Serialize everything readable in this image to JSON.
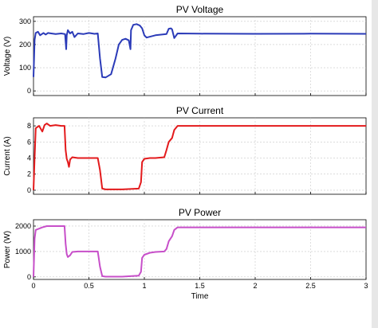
{
  "chart_data": [
    {
      "type": "line",
      "title": "PV Voltage",
      "xlabel": "",
      "ylabel": "Voltage (V)",
      "xlim": [
        0,
        3
      ],
      "ylim": [
        -20,
        320
      ],
      "xticks": [
        "",
        "",
        "",
        "",
        "",
        "",
        ""
      ],
      "yticks": [
        "0",
        "100",
        "200",
        "300"
      ],
      "grid": true,
      "series": [
        {
          "color": "#2b3bb8",
          "x": [
            0,
            0.01,
            0.02,
            0.04,
            0.06,
            0.09,
            0.11,
            0.13,
            0.16,
            0.2,
            0.25,
            0.285,
            0.295,
            0.3,
            0.31,
            0.33,
            0.35,
            0.37,
            0.4,
            0.45,
            0.5,
            0.55,
            0.58,
            0.6,
            0.62,
            0.65,
            0.7,
            0.74,
            0.77,
            0.8,
            0.83,
            0.86,
            0.875,
            0.88,
            0.9,
            0.93,
            0.96,
            0.98,
            1.0,
            1.02,
            1.1,
            1.2,
            1.22,
            1.24,
            1.25,
            1.27,
            1.3,
            1.5,
            2.0,
            2.5,
            3.0
          ],
          "y": [
            60,
            220,
            250,
            255,
            240,
            250,
            243,
            250,
            248,
            245,
            248,
            245,
            180,
            240,
            262,
            248,
            255,
            232,
            248,
            245,
            250,
            246,
            248,
            140,
            60,
            58,
            72,
            140,
            200,
            220,
            225,
            218,
            180,
            262,
            285,
            288,
            282,
            270,
            240,
            230,
            240,
            245,
            268,
            270,
            265,
            228,
            248,
            247,
            246,
            247,
            246
          ]
        }
      ]
    },
    {
      "type": "line",
      "title": "PV Current",
      "xlabel": "",
      "ylabel": "Current (A)",
      "xlim": [
        0,
        3
      ],
      "ylim": [
        -0.5,
        9
      ],
      "xticks": [
        "",
        "",
        "",
        "",
        "",
        "",
        ""
      ],
      "yticks": [
        "0",
        "2",
        "4",
        "6",
        "8"
      ],
      "grid": true,
      "series": [
        {
          "color": "#e31a1c",
          "x": [
            0,
            0.01,
            0.02,
            0.05,
            0.08,
            0.1,
            0.12,
            0.15,
            0.2,
            0.25,
            0.28,
            0.29,
            0.3,
            0.31,
            0.32,
            0.33,
            0.35,
            0.4,
            0.5,
            0.58,
            0.6,
            0.62,
            0.65,
            0.8,
            0.95,
            0.97,
            0.98,
            1.0,
            1.05,
            1.1,
            1.18,
            1.2,
            1.22,
            1.25,
            1.27,
            1.3,
            1.5,
            2.0,
            2.5,
            3.0
          ],
          "y": [
            0,
            4,
            7.7,
            8.0,
            7.3,
            8.1,
            8.3,
            8.0,
            8.1,
            8.0,
            8.0,
            5.0,
            3.9,
            3.5,
            2.9,
            3.8,
            4.1,
            4.0,
            4.0,
            4.0,
            2.5,
            0.2,
            0.1,
            0.1,
            0.2,
            1.0,
            3.5,
            3.9,
            4.0,
            4.0,
            4.1,
            5.0,
            6.0,
            6.5,
            7.5,
            8.0,
            8.0,
            8.0,
            8.0,
            8.0
          ]
        }
      ]
    },
    {
      "type": "line",
      "title": "PV Power",
      "xlabel": "Time",
      "ylabel": "Power (W)",
      "xlim": [
        0,
        3
      ],
      "ylim": [
        -100,
        2250
      ],
      "xticks": [
        "0",
        "0.5",
        "1",
        "1.5",
        "2",
        "2.5",
        "3"
      ],
      "yticks": [
        "0",
        "1000",
        "2000"
      ],
      "grid": true,
      "series": [
        {
          "color": "#c74fc9",
          "x": [
            0,
            0.01,
            0.02,
            0.05,
            0.08,
            0.12,
            0.15,
            0.2,
            0.25,
            0.28,
            0.29,
            0.3,
            0.31,
            0.33,
            0.35,
            0.4,
            0.5,
            0.58,
            0.6,
            0.62,
            0.65,
            0.8,
            0.95,
            0.97,
            0.98,
            1.0,
            1.05,
            1.1,
            1.18,
            1.2,
            1.22,
            1.25,
            1.27,
            1.3,
            1.5,
            2.0,
            2.5,
            3.0
          ],
          "y": [
            0,
            1500,
            1850,
            1900,
            1950,
            2000,
            2000,
            2000,
            2000,
            2000,
            1300,
            900,
            780,
            850,
            980,
            1000,
            1000,
            1000,
            400,
            30,
            10,
            10,
            50,
            200,
            750,
            870,
            950,
            980,
            1000,
            1100,
            1400,
            1600,
            1850,
            1950,
            1950,
            1950,
            1950,
            1950
          ]
        }
      ]
    }
  ]
}
